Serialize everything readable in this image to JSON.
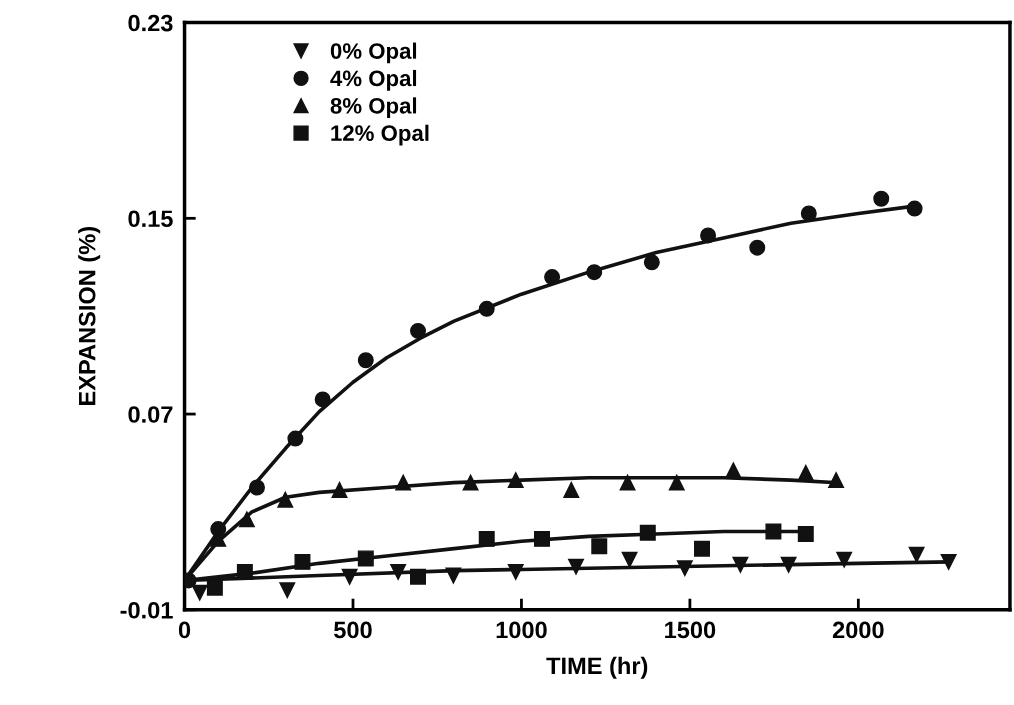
{
  "chart_data": {
    "type": "scatter",
    "xlabel": "TIME (hr)",
    "ylabel": "EXPANSION (%)",
    "xlim": [
      0,
      2450
    ],
    "xticks": [
      0,
      500,
      1000,
      1500,
      2000
    ],
    "ylim": [
      -0.01,
      0.23
    ],
    "yticks": [
      -0.01,
      0.07,
      0.15,
      0.23
    ],
    "grid": false,
    "legend": "top left",
    "series": [
      {
        "name": "0% Opal",
        "marker": "triangle_down",
        "color": "#111111",
        "x": [
          45,
          305,
          490,
          634,
          798,
          983,
          1162,
          1321,
          1485,
          1650,
          1793,
          1958,
          2173,
          2268
        ],
        "values": [
          -0.003,
          -0.002,
          0.0035,
          0.0055,
          0.004,
          0.0055,
          0.0076,
          0.0105,
          0.007,
          0.0084,
          0.0084,
          0.0105,
          0.0125,
          0.0096
        ]
      },
      {
        "name": "4% Opal",
        "marker": "circle",
        "color": "#111111",
        "x": [
          12,
          100,
          215,
          329,
          410,
          538,
          693,
          897,
          1091,
          1216,
          1387,
          1554,
          1700,
          1853,
          2068,
          2167
        ],
        "values": [
          0.002,
          0.023,
          0.04,
          0.06,
          0.076,
          0.092,
          0.104,
          0.113,
          0.126,
          0.128,
          0.132,
          0.143,
          0.138,
          0.152,
          0.158,
          0.154
        ]
      },
      {
        "name": "8% Opal",
        "marker": "triangle",
        "color": "#111111",
        "x": [
          100,
          185,
          299,
          460,
          649,
          849,
          983,
          1148,
          1315,
          1461,
          1629,
          1844,
          1934
        ],
        "values": [
          0.019,
          0.027,
          0.035,
          0.039,
          0.042,
          0.042,
          0.043,
          0.039,
          0.042,
          0.042,
          0.047,
          0.046,
          0.043
        ]
      },
      {
        "name": "12% Opal",
        "marker": "square",
        "color": "#111111",
        "x": [
          90,
          179,
          350,
          538,
          693,
          897,
          1061,
          1231,
          1375,
          1536,
          1748,
          1844
        ],
        "values": [
          -0.001,
          0.0055,
          0.0096,
          0.011,
          0.0035,
          0.019,
          0.019,
          0.016,
          0.0215,
          0.015,
          0.022,
          0.021
        ]
      },
      {
        "type": "line",
        "marker": "none",
        "color": "#111111",
        "x": [
          0,
          400,
          800,
          1200,
          1600,
          2000,
          2268
        ],
        "values": [
          0.002,
          0.004,
          0.006,
          0.007,
          0.008,
          0.009,
          0.0096
        ]
      },
      {
        "type": "line",
        "marker": "none",
        "color": "#111111",
        "x": [
          0,
          100,
          200,
          300,
          400,
          500,
          600,
          700,
          800,
          1000,
          1200,
          1400,
          1600,
          1800,
          2000,
          2167
        ],
        "values": [
          0.002,
          0.022,
          0.04,
          0.056,
          0.071,
          0.083,
          0.093,
          0.101,
          0.108,
          0.119,
          0.128,
          0.136,
          0.142,
          0.148,
          0.152,
          0.155
        ]
      },
      {
        "type": "line",
        "marker": "none",
        "color": "#111111",
        "x": [
          0,
          100,
          200,
          300,
          400,
          600,
          800,
          1000,
          1200,
          1400,
          1600,
          1800,
          1934
        ],
        "values": [
          0.002,
          0.018,
          0.03,
          0.036,
          0.038,
          0.04,
          0.042,
          0.043,
          0.044,
          0.044,
          0.044,
          0.043,
          0.042
        ]
      },
      {
        "type": "line",
        "marker": "none",
        "color": "#111111",
        "x": [
          0,
          200,
          400,
          600,
          800,
          1000,
          1200,
          1400,
          1600,
          1844
        ],
        "values": [
          0.002,
          0.005,
          0.009,
          0.012,
          0.015,
          0.018,
          0.02,
          0.021,
          0.022,
          0.022
        ]
      }
    ]
  }
}
